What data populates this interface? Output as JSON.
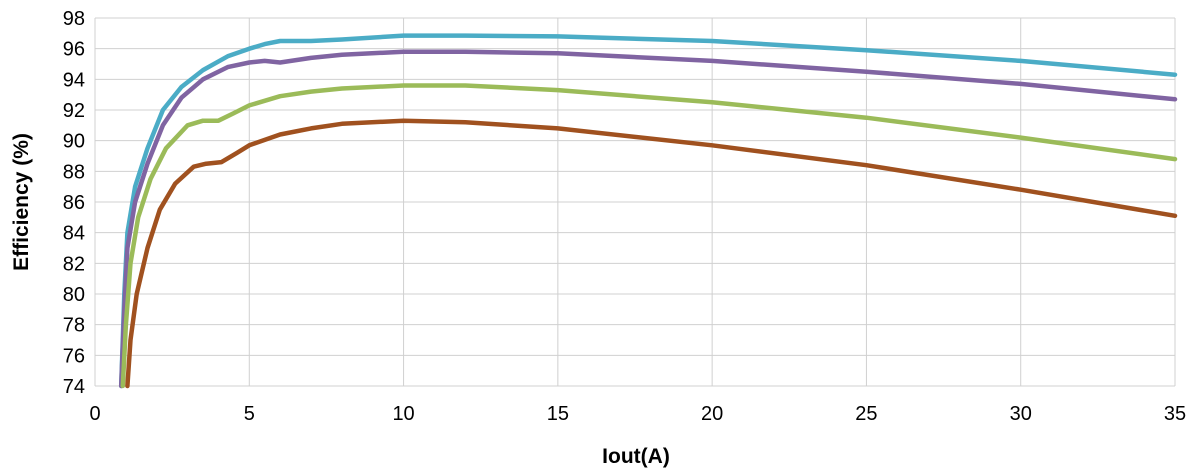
{
  "chart_data": {
    "type": "line",
    "title": "",
    "xlabel": "Iout(A)",
    "ylabel": "Efficiency (%)",
    "xlim": [
      0,
      35
    ],
    "ylim": [
      74,
      98
    ],
    "xticks": [
      0,
      5,
      10,
      15,
      20,
      25,
      30,
      35
    ],
    "yticks": [
      74,
      76,
      78,
      80,
      82,
      84,
      86,
      88,
      90,
      92,
      94,
      96,
      98
    ],
    "grid": true,
    "legend": "none",
    "series": [
      {
        "color": "#4bacc6",
        "points": [
          [
            0.85,
            74
          ],
          [
            0.95,
            80
          ],
          [
            1.05,
            84
          ],
          [
            1.3,
            87
          ],
          [
            1.7,
            89.5
          ],
          [
            2.2,
            92
          ],
          [
            2.8,
            93.5
          ],
          [
            3.5,
            94.6
          ],
          [
            4.3,
            95.5
          ],
          [
            5,
            96
          ],
          [
            5.5,
            96.3
          ],
          [
            6,
            96.5
          ],
          [
            7,
            96.5
          ],
          [
            8,
            96.6
          ],
          [
            10,
            96.85
          ],
          [
            12,
            96.85
          ],
          [
            15,
            96.8
          ],
          [
            20,
            96.5
          ],
          [
            25,
            95.9
          ],
          [
            30,
            95.2
          ],
          [
            35,
            94.3
          ]
        ]
      },
      {
        "color": "#8064a2",
        "points": [
          [
            0.85,
            74
          ],
          [
            0.95,
            79
          ],
          [
            1.05,
            83
          ],
          [
            1.3,
            86
          ],
          [
            1.7,
            88.5
          ],
          [
            2.2,
            91
          ],
          [
            2.8,
            92.8
          ],
          [
            3.5,
            94
          ],
          [
            4.3,
            94.8
          ],
          [
            5,
            95.1
          ],
          [
            5.5,
            95.2
          ],
          [
            6,
            95.1
          ],
          [
            7,
            95.4
          ],
          [
            8,
            95.6
          ],
          [
            10,
            95.8
          ],
          [
            12,
            95.8
          ],
          [
            15,
            95.7
          ],
          [
            20,
            95.2
          ],
          [
            25,
            94.5
          ],
          [
            30,
            93.7
          ],
          [
            35,
            92.7
          ]
        ]
      },
      {
        "color": "#9bbb59",
        "points": [
          [
            0.9,
            74
          ],
          [
            1.0,
            78
          ],
          [
            1.15,
            82
          ],
          [
            1.4,
            85
          ],
          [
            1.8,
            87.5
          ],
          [
            2.3,
            89.5
          ],
          [
            3,
            91
          ],
          [
            3.5,
            91.3
          ],
          [
            4,
            91.3
          ],
          [
            4.5,
            91.8
          ],
          [
            5,
            92.3
          ],
          [
            6,
            92.9
          ],
          [
            7,
            93.2
          ],
          [
            8,
            93.4
          ],
          [
            10,
            93.6
          ],
          [
            12,
            93.6
          ],
          [
            15,
            93.3
          ],
          [
            20,
            92.5
          ],
          [
            25,
            91.5
          ],
          [
            30,
            90.2
          ],
          [
            35,
            88.8
          ]
        ]
      },
      {
        "color": "#a0511f",
        "points": [
          [
            1.05,
            74
          ],
          [
            1.15,
            77
          ],
          [
            1.35,
            80
          ],
          [
            1.7,
            83
          ],
          [
            2.1,
            85.5
          ],
          [
            2.6,
            87.2
          ],
          [
            3.2,
            88.3
          ],
          [
            3.6,
            88.5
          ],
          [
            4.1,
            88.6
          ],
          [
            4.6,
            89.2
          ],
          [
            5,
            89.7
          ],
          [
            6,
            90.4
          ],
          [
            7,
            90.8
          ],
          [
            8,
            91.1
          ],
          [
            10,
            91.3
          ],
          [
            12,
            91.2
          ],
          [
            15,
            90.8
          ],
          [
            20,
            89.7
          ],
          [
            25,
            88.4
          ],
          [
            30,
            86.8
          ],
          [
            35,
            85.1
          ]
        ]
      }
    ]
  }
}
